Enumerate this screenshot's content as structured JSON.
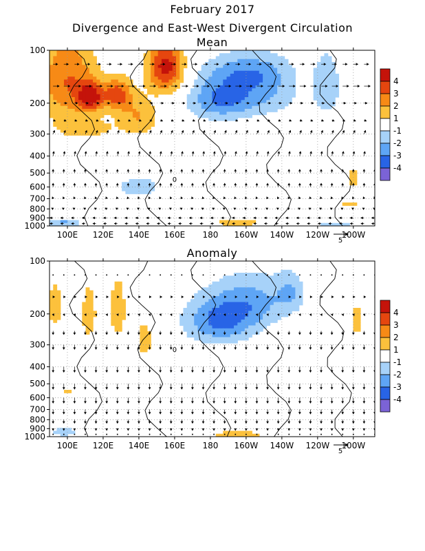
{
  "header": {
    "title": "February 2017",
    "subtitle": "Divergence and East-West Divergent Circulation"
  },
  "colors": {
    "div_pos": [
      "#ffffff",
      "#fcc13c",
      "#f78a16",
      "#e5460f",
      "#c4130a"
    ],
    "div_neg": [
      "#ffffff",
      "#a7d2f9",
      "#5ea5f5",
      "#2864e6",
      "#7b63d6"
    ],
    "contour": "#000000",
    "vector": "#000000",
    "grid": "#9a9a9a"
  },
  "chart_data": [
    {
      "type": "heatmap",
      "panel": "mean",
      "title": "Mean",
      "x_ticks": [
        "100E",
        "120E",
        "140E",
        "160E",
        "180",
        "160W",
        "140W",
        "120W",
        "100W"
      ],
      "x_tick_lon": [
        100,
        120,
        140,
        160,
        180,
        200,
        220,
        240,
        260
      ],
      "y_ticks": [
        "100",
        "200",
        "300",
        "400",
        "500",
        "600",
        "700",
        "800",
        "900",
        "1000"
      ],
      "y_tick_hpa": [
        100,
        200,
        300,
        400,
        500,
        600,
        700,
        800,
        900,
        1000
      ],
      "xlim": [
        90,
        272
      ],
      "ylim_hpa": [
        100,
        1000
      ],
      "y_scale": "log-pressure",
      "colorbar_labels": [
        "4",
        "3",
        "2",
        "1",
        "-1",
        "-2",
        "-3",
        "-4"
      ],
      "vector_ref": "5",
      "contour_label": "0",
      "blobs": [
        {
          "lon": 100,
          "p": 150,
          "rx": 16,
          "ry": 90,
          "v": 3
        },
        {
          "lon": 113,
          "p": 185,
          "rx": 7,
          "ry": 35,
          "v": 4
        },
        {
          "lon": 128,
          "p": 180,
          "rx": 8,
          "ry": 38,
          "v": 3.5
        },
        {
          "lon": 155,
          "p": 125,
          "rx": 10,
          "ry": 45,
          "v": 4.5
        },
        {
          "lon": 140,
          "p": 240,
          "rx": 11,
          "ry": 60,
          "v": 2
        },
        {
          "lon": 110,
          "p": 280,
          "rx": 18,
          "ry": 40,
          "v": 1.5
        },
        {
          "lon": 185,
          "p": 190,
          "rx": 18,
          "ry": 55,
          "v": -3
        },
        {
          "lon": 210,
          "p": 170,
          "rx": 20,
          "ry": 60,
          "v": -2
        },
        {
          "lon": 245,
          "p": 160,
          "rx": 8,
          "ry": 70,
          "v": -1.8
        },
        {
          "lon": 200,
          "p": 130,
          "rx": 22,
          "ry": 30,
          "v": -1.6
        },
        {
          "lon": 140,
          "p": 600,
          "rx": 14,
          "ry": 90,
          "v": -1.6
        },
        {
          "lon": 260,
          "p": 530,
          "rx": 3,
          "ry": 60,
          "v": 2
        },
        {
          "lon": 258,
          "p": 750,
          "rx": 7,
          "ry": 40,
          "v": 1.5
        },
        {
          "lon": 195,
          "p": 960,
          "rx": 15,
          "ry": 35,
          "v": 2
        },
        {
          "lon": 98,
          "p": 960,
          "rx": 10,
          "ry": 40,
          "v": -2.5
        },
        {
          "lon": 250,
          "p": 980,
          "rx": 12,
          "ry": 20,
          "v": -1.5
        }
      ],
      "vectors": [
        {
          "p": 120,
          "u": 3,
          "w": 0
        },
        {
          "p": 160,
          "u": 4,
          "w": 0
        },
        {
          "p": 200,
          "u": 2,
          "w": 0
        },
        {
          "p": 250,
          "u": 1.5,
          "w": -0.5
        },
        {
          "p": 300,
          "u": 1,
          "w": 2
        },
        {
          "p": 400,
          "u": 0.5,
          "w": 2.5
        },
        {
          "p": 500,
          "u": 0,
          "w": 2
        },
        {
          "p": 600,
          "u": 0,
          "w": 2
        },
        {
          "p": 700,
          "u": -0.5,
          "w": 1
        },
        {
          "p": 800,
          "u": -1,
          "w": 0.5
        },
        {
          "p": 900,
          "u": -2,
          "w": 0
        },
        {
          "p": 970,
          "u": -2,
          "w": 0
        }
      ]
    },
    {
      "type": "heatmap",
      "panel": "anomaly",
      "title": "Anomaly",
      "x_ticks": [
        "100E",
        "120E",
        "140E",
        "160E",
        "180",
        "160W",
        "140W",
        "120W",
        "100W"
      ],
      "x_tick_lon": [
        100,
        120,
        140,
        160,
        180,
        200,
        220,
        240,
        260
      ],
      "y_ticks": [
        "100",
        "200",
        "300",
        "400",
        "500",
        "600",
        "700",
        "800",
        "900",
        "1000"
      ],
      "y_tick_hpa": [
        100,
        200,
        300,
        400,
        500,
        600,
        700,
        800,
        900,
        1000
      ],
      "xlim": [
        90,
        272
      ],
      "ylim_hpa": [
        100,
        1000
      ],
      "y_scale": "log-pressure",
      "colorbar_labels": [
        "4",
        "3",
        "2",
        "1",
        "-1",
        "-2",
        "-3",
        "-4"
      ],
      "vector_ref": "5",
      "contour_label": "0",
      "blobs": [
        {
          "lon": 93,
          "p": 180,
          "rx": 4,
          "ry": 50,
          "v": 2
        },
        {
          "lon": 112,
          "p": 200,
          "rx": 4,
          "ry": 70,
          "v": 2
        },
        {
          "lon": 128,
          "p": 190,
          "rx": 5,
          "ry": 80,
          "v": 1.8
        },
        {
          "lon": 143,
          "p": 280,
          "rx": 5,
          "ry": 80,
          "v": 1.6
        },
        {
          "lon": 185,
          "p": 220,
          "rx": 20,
          "ry": 70,
          "v": -3.2
        },
        {
          "lon": 205,
          "p": 170,
          "rx": 20,
          "ry": 60,
          "v": -2
        },
        {
          "lon": 225,
          "p": 150,
          "rx": 8,
          "ry": 40,
          "v": -1.6
        },
        {
          "lon": 262,
          "p": 220,
          "rx": 3,
          "ry": 50,
          "v": 1.8
        },
        {
          "lon": 195,
          "p": 965,
          "rx": 18,
          "ry": 30,
          "v": 2
        },
        {
          "lon": 98,
          "p": 940,
          "rx": 8,
          "ry": 50,
          "v": -2
        },
        {
          "lon": 100,
          "p": 550,
          "rx": 2,
          "ry": 40,
          "v": 1.4
        }
      ],
      "vectors": [
        {
          "p": 120,
          "u": 0,
          "w": 0
        },
        {
          "p": 160,
          "u": 1,
          "w": 0
        },
        {
          "p": 200,
          "u": 0.5,
          "w": -1
        },
        {
          "p": 250,
          "u": 0,
          "w": -2
        },
        {
          "p": 300,
          "u": 0,
          "w": -2.5
        },
        {
          "p": 400,
          "u": 0,
          "w": -3
        },
        {
          "p": 500,
          "u": 0,
          "w": -3
        },
        {
          "p": 600,
          "u": 0,
          "w": -3
        },
        {
          "p": 700,
          "u": 0,
          "w": -2.5
        },
        {
          "p": 800,
          "u": 0,
          "w": -2
        },
        {
          "p": 900,
          "u": 0,
          "w": -1
        },
        {
          "p": 970,
          "u": 0,
          "w": 0
        }
      ]
    }
  ]
}
